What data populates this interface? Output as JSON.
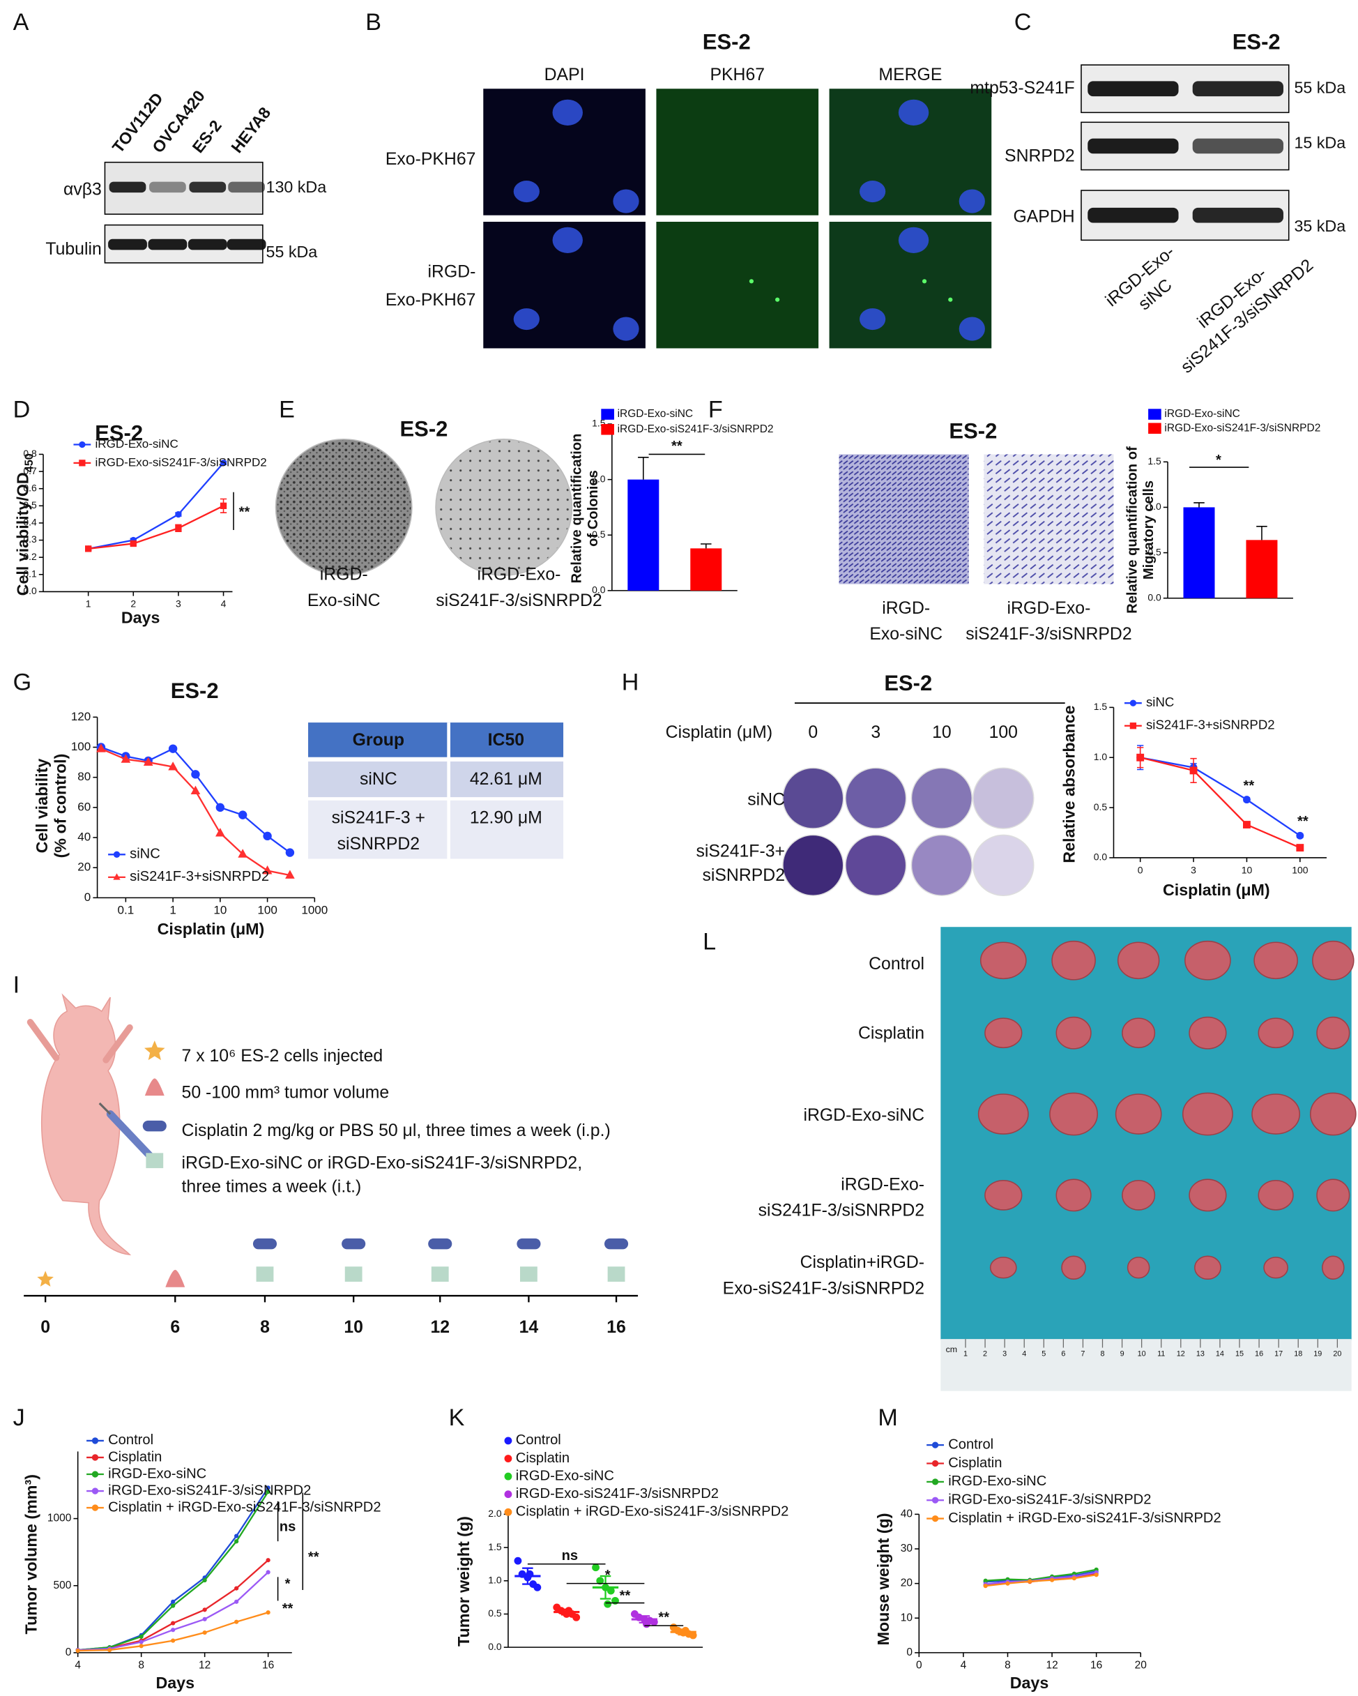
{
  "panel_labels": [
    "A",
    "B",
    "C",
    "D",
    "E",
    "F",
    "G",
    "H",
    "I",
    "L",
    "J",
    "K",
    "M"
  ],
  "blot_a": {
    "lanes": [
      "TOV112D",
      "OVCA420",
      "ES-2",
      "HEYA8"
    ],
    "rows": [
      "αvβ3",
      "Tubulin"
    ],
    "sizes": [
      "130 kDa",
      "55 kDa"
    ]
  },
  "imaging_b": {
    "title": "ES-2",
    "columns": [
      "DAPI",
      "PKH67",
      "MERGE"
    ],
    "rows": [
      [
        "Exo-PKH67"
      ],
      [
        "iRGD-",
        "Exo-PKH67"
      ]
    ]
  },
  "blot_c": {
    "title": "ES-2",
    "rows": [
      "mtp53-S241F",
      "SNRPD2",
      "GAPDH"
    ],
    "sizes": [
      "55 kDa",
      "15 kDa",
      "35 kDa"
    ],
    "lanes": [
      [
        "iRGD-Exo-",
        "siNC"
      ],
      [
        "iRGD-Exo-",
        "siS241F-3/siSNRPD2"
      ]
    ]
  },
  "colony_e": {
    "title": "ES-2",
    "groups": [
      [
        "iRGD-",
        "Exo-siNC"
      ],
      [
        "iRGD-Exo-",
        "siS241F-3/siSNRPD2"
      ]
    ]
  },
  "migration_f": {
    "title": "ES-2",
    "groups": [
      [
        "iRGD-",
        "Exo-siNC"
      ],
      [
        "iRGD-Exo-",
        "siS241F-3/siSNRPD2"
      ]
    ]
  },
  "ic50_table": {
    "header": [
      "Group",
      "IC50"
    ],
    "rows": [
      [
        [
          "siNC"
        ],
        "42.61 μM"
      ],
      [
        [
          "siS241F-3 +",
          "siSNRPD2"
        ],
        "12.90 μM"
      ]
    ]
  },
  "colony_h": {
    "title": "ES-2",
    "dose_label": "Cisplatin (μM)",
    "doses": [
      "0",
      "3",
      "10",
      "100"
    ],
    "rows": [
      [
        "siNC"
      ],
      [
        "siS241F-3+",
        "siSNRPD2"
      ]
    ]
  },
  "protocol_i": {
    "steps": [
      [
        "7 x 10⁶ ES-2 cells injected"
      ],
      [
        "50 -100 mm³ tumor volume"
      ],
      [
        "Cisplatin  2 mg/kg or PBS 50 μl, three times a week (i.p.)"
      ],
      [
        "iRGD-Exo-siNC or iRGD-Exo-siS241F-3/siSNRPD2,",
        "three times a week (i.t.)"
      ]
    ],
    "days": [
      0,
      6,
      8,
      10,
      12,
      14,
      16
    ]
  },
  "tumors_l": {
    "rows": [
      [
        "Control"
      ],
      [
        "Cisplatin"
      ],
      [
        "iRGD-Exo-siNC"
      ],
      [
        "iRGD-Exo-",
        "siS241F-3/siSNRPD2"
      ],
      [
        "Cisplatin+iRGD-",
        "Exo-siS241F-3/siSNRPD2"
      ]
    ],
    "ruler_unit": "cm",
    "ruler_marks": [
      1,
      2,
      3,
      4,
      5,
      6,
      7,
      8,
      9,
      10,
      11,
      12,
      13,
      14,
      15,
      16,
      17,
      18,
      19,
      20
    ]
  },
  "chart_data": [
    {
      "type": "line",
      "title": "ES-2",
      "xlabel": "Days",
      "ylabel": [
        "Cell viability/OD"
      ],
      "ylabel_sub": "450",
      "x": [
        1,
        2,
        3,
        4
      ],
      "xlim": [
        0,
        4.2
      ],
      "xticks": [
        1,
        2,
        3,
        4
      ],
      "ylim": [
        0,
        0.8
      ],
      "yticks": [
        {
          "value": 0,
          "label": "0.0"
        },
        {
          "value": 0.1,
          "label": "0.1"
        },
        {
          "value": 0.2,
          "label": "0.2"
        },
        {
          "value": 0.3,
          "label": "0.3"
        },
        {
          "value": 0.4,
          "label": "0.4"
        },
        {
          "value": 0.5,
          "label": "0.5"
        },
        {
          "value": 0.6,
          "label": "0.6"
        },
        {
          "value": 0.7,
          "label": "0.7"
        },
        {
          "value": 0.8,
          "label": "0.8"
        }
      ],
      "series": [
        {
          "name": "iRGD-Exo-siNC",
          "color": "#1f3fff",
          "marker": "circle",
          "values": [
            0.25,
            0.3,
            0.45,
            0.75
          ],
          "errors": [
            0.01,
            0.01,
            0.01,
            0.01
          ]
        },
        {
          "name": "iRGD-Exo-siS241F-3/siSNRPD2",
          "color": "#ff2020",
          "marker": "square",
          "values": [
            0.25,
            0.28,
            0.37,
            0.5
          ],
          "errors": [
            0.01,
            0.01,
            0.02,
            0.04
          ]
        }
      ],
      "annotations": [
        "**"
      ]
    },
    {
      "type": "bar",
      "ylabel": [
        "Relative quantification",
        "of Colonies"
      ],
      "ylim": [
        0,
        1.5
      ],
      "yticks": [
        {
          "value": 0,
          "label": "0.0"
        },
        {
          "value": 0.5,
          "label": "0.5"
        },
        {
          "value": 1,
          "label": "1.0"
        },
        {
          "value": 1.5,
          "label": "1.5"
        }
      ],
      "series": [
        {
          "name": "iRGD-Exo-siNC",
          "color": "#0000ff",
          "values": [
            1.0
          ],
          "errors": [
            0.2
          ]
        },
        {
          "name": "iRGD-Exo-siS241F-3/siSNRPD2",
          "color": "#ff0000",
          "values": [
            0.38
          ],
          "errors": [
            0.04
          ]
        }
      ],
      "annotations": [
        "**"
      ]
    },
    {
      "type": "bar",
      "ylabel": [
        "Relative quantification of",
        "Migratory cells"
      ],
      "ylim": [
        0,
        1.5
      ],
      "yticks": [
        {
          "value": 0,
          "label": "0.0"
        },
        {
          "value": 0.5,
          "label": "0.5"
        },
        {
          "value": 1,
          "label": "1.0"
        },
        {
          "value": 1.5,
          "label": "1.5"
        }
      ],
      "series": [
        {
          "name": "iRGD-Exo-siNC",
          "color": "#0000ff",
          "values": [
            1.0
          ],
          "errors": [
            0.05
          ]
        },
        {
          "name": "iRGD-Exo-siS241F-3/siSNRPD2",
          "color": "#ff0000",
          "values": [
            0.64
          ],
          "errors": [
            0.15
          ]
        }
      ],
      "annotations": [
        "*"
      ]
    },
    {
      "type": "line",
      "title": "ES-2",
      "xscale": "log",
      "xlabel": "Cisplatin (μM)",
      "ylabel": [
        "Cell viability",
        "(% of control)"
      ],
      "x": [
        0.03,
        0.1,
        0.3,
        1,
        3,
        10,
        30,
        100,
        300
      ],
      "xlim": [
        0.025,
        1000
      ],
      "xticks": [
        0.1,
        1,
        10,
        100,
        1000
      ],
      "ylim": [
        0,
        120
      ],
      "yticks": [
        0,
        20,
        40,
        60,
        80,
        100,
        120
      ],
      "series": [
        {
          "name": "siNC",
          "color": "#1f3fff",
          "marker": "circle",
          "values": [
            100,
            94,
            91,
            99,
            82,
            60,
            55,
            41,
            30
          ]
        },
        {
          "name": "siS241F-3+siSNRPD2",
          "color": "#ff3030",
          "marker": "triangle",
          "values": [
            99,
            92,
            90,
            87,
            71,
            43,
            29,
            18,
            15
          ]
        }
      ]
    },
    {
      "type": "line",
      "xlabel": "Cisplatin (μM)",
      "ylabel": [
        "Relative absorbance"
      ],
      "categories": [
        "0",
        "3",
        "10",
        "100"
      ],
      "ylim": [
        0,
        1.5
      ],
      "yticks": [
        {
          "value": 0,
          "label": "0.0"
        },
        {
          "value": 0.5,
          "label": "0.5"
        },
        {
          "value": 1,
          "label": "1.0"
        },
        {
          "value": 1.5,
          "label": "1.5"
        }
      ],
      "series": [
        {
          "name": "siNC",
          "color": "#1f3fff",
          "marker": "circle",
          "values": [
            1.0,
            0.9,
            0.58,
            0.22
          ],
          "errors": [
            0.12,
            0.04,
            0.02,
            0.02
          ]
        },
        {
          "name": "siS241F-3+siSNRPD2",
          "color": "#ff2020",
          "marker": "square",
          "values": [
            1.0,
            0.87,
            0.33,
            0.1
          ],
          "errors": [
            0.1,
            0.12,
            0.02,
            0.01
          ]
        }
      ],
      "annotations": [
        "**",
        "**"
      ]
    },
    {
      "type": "line",
      "xlabel": "Days",
      "ylabel": [
        "Tumor volume (mm³)"
      ],
      "x": [
        4,
        6,
        8,
        10,
        12,
        14,
        16
      ],
      "xlim": [
        4,
        17.5
      ],
      "xticks": [
        4,
        8,
        12,
        16
      ],
      "ylim": [
        0,
        1500
      ],
      "yticks": [
        0,
        500,
        1000
      ],
      "series": [
        {
          "name": "Control",
          "color": "#1f4bd8",
          "marker": "circle",
          "values": [
            20,
            40,
            130,
            380,
            560,
            870,
            1230
          ]
        },
        {
          "name": "Cisplatin",
          "color": "#e8252a",
          "marker": "circle",
          "values": [
            20,
            35,
            90,
            220,
            320,
            480,
            690
          ]
        },
        {
          "name": "iRGD-Exo-siNC",
          "color": "#22a822",
          "marker": "circle",
          "values": [
            20,
            40,
            120,
            350,
            540,
            830,
            1200
          ]
        },
        {
          "name": "iRGD-Exo-siS241F-3/siSNRPD2",
          "color": "#9b59f5",
          "marker": "circle",
          "values": [
            20,
            30,
            80,
            170,
            250,
            380,
            600
          ]
        },
        {
          "name": "Cisplatin + iRGD-Exo-siS241F-3/siSNRPD2",
          "color": "#ff8c1a",
          "marker": "circle",
          "values": [
            15,
            20,
            50,
            90,
            150,
            230,
            300
          ]
        }
      ],
      "annotations": [
        "ns",
        "*",
        "**",
        "**"
      ]
    },
    {
      "type": "scatter",
      "ylabel": [
        "Tumor weight (g)"
      ],
      "ylim": [
        0,
        2
      ],
      "yticks": [
        {
          "value": 0,
          "label": "0.0"
        },
        {
          "value": 0.5,
          "label": "0.5"
        },
        {
          "value": 1,
          "label": "1.0"
        },
        {
          "value": 1.5,
          "label": "1.5"
        },
        {
          "value": 2,
          "label": "2.0"
        }
      ],
      "series": [
        {
          "name": "Control",
          "color": "#1a1aff",
          "values": [
            1.3,
            1.1,
            1.05,
            0.95,
            0.9,
            1.1
          ],
          "mean": 1.07,
          "error": 0.12
        },
        {
          "name": "Cisplatin",
          "color": "#ff1a1a",
          "values": [
            0.6,
            0.55,
            0.5,
            0.5,
            0.45,
            0.55
          ],
          "mean": 0.53,
          "error": 0.04
        },
        {
          "name": "iRGD-Exo-siNC",
          "color": "#22cc22",
          "values": [
            1.2,
            1.0,
            0.9,
            0.85,
            0.7,
            0.65
          ],
          "mean": 0.9,
          "error": 0.17
        },
        {
          "name": "iRGD-Exo-siS241F-3/siSNRPD2",
          "color": "#b030e0",
          "values": [
            0.5,
            0.45,
            0.42,
            0.4,
            0.38,
            0.35
          ],
          "mean": 0.42,
          "error": 0.05
        },
        {
          "name": "Cisplatin + iRGD-Exo-siS241F-3/siSNRPD2",
          "color": "#ff8c1a",
          "values": [
            0.3,
            0.25,
            0.22,
            0.2,
            0.18,
            0.25
          ],
          "mean": 0.23,
          "error": 0.04
        }
      ],
      "annotations": [
        "ns",
        "*",
        "**",
        "**"
      ]
    },
    {
      "type": "line",
      "xlabel": "Days",
      "ylabel": [
        "Mouse weight (g)"
      ],
      "x": [
        6,
        8,
        10,
        12,
        14,
        16
      ],
      "xlim": [
        0,
        20
      ],
      "xticks": [
        0,
        4,
        8,
        12,
        16,
        20
      ],
      "ylim": [
        0,
        40
      ],
      "yticks": [
        0,
        10,
        20,
        30,
        40
      ],
      "series": [
        {
          "name": "Control",
          "color": "#1f4bd8",
          "marker": "circle",
          "values": [
            20.5,
            20.8,
            21,
            21.8,
            22.3,
            23.5
          ]
        },
        {
          "name": "Cisplatin",
          "color": "#e8252a",
          "marker": "circle",
          "values": [
            19.5,
            20.3,
            20.5,
            21.2,
            21.8,
            22.8
          ]
        },
        {
          "name": "iRGD-Exo-siNC",
          "color": "#22a822",
          "marker": "circle",
          "values": [
            20.8,
            21.2,
            21,
            22,
            22.8,
            24
          ]
        },
        {
          "name": "iRGD-Exo-siS241F-3/siSNRPD2",
          "color": "#9b59f5",
          "marker": "circle",
          "values": [
            19.8,
            20.5,
            20.7,
            21.5,
            22,
            23.2
          ]
        },
        {
          "name": "Cisplatin + iRGD-Exo-siS241F-3/siSNRPD2",
          "color": "#ff8c1a",
          "marker": "circle",
          "values": [
            19.3,
            20,
            20.6,
            21,
            21.5,
            22.5
          ]
        }
      ]
    }
  ]
}
